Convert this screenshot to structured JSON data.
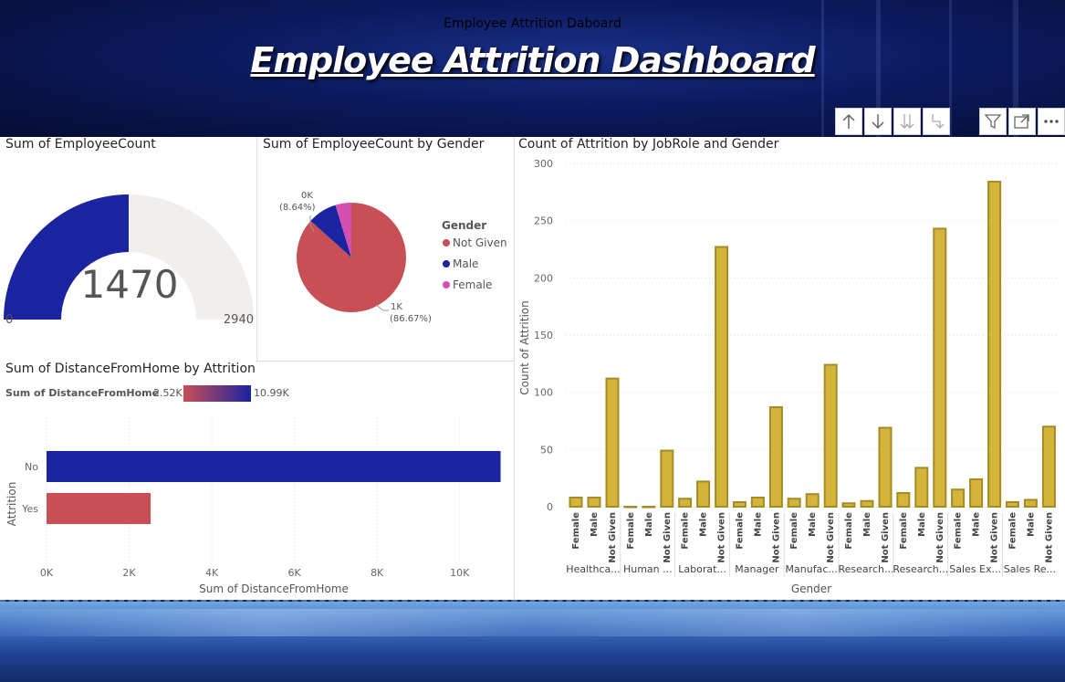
{
  "header": {
    "small_title": "Employee Attrition Daboard",
    "main_title": "Employee Attrition Dashboard"
  },
  "toolbar": {
    "icons": [
      "drill-up-icon",
      "drill-down-icon",
      "expand-all-icon",
      "drill-next-level-icon",
      "filter-icon",
      "focus-mode-icon",
      "more-options-icon"
    ]
  },
  "gauge": {
    "title": "Sum of EmployeeCount",
    "value": "1470",
    "min": "0",
    "max": "2940",
    "fraction": 0.5,
    "colors": {
      "fill": "#1a23a0",
      "track": "#f0efed"
    }
  },
  "pie": {
    "title": "Sum of EmployeeCount by Gender",
    "legend_title": "Gender",
    "legend": [
      {
        "label": "Not Given",
        "color": "#c84f55"
      },
      {
        "label": "Male",
        "color": "#1a23a0"
      },
      {
        "label": "Female",
        "color": "#d44fb0"
      }
    ],
    "label_small_1": "0K",
    "label_small_2": "(8.64%)",
    "label_large_1": "1K",
    "label_large_2": "(86.67%)"
  },
  "distance": {
    "title": "Sum of DistanceFromHome by Attrition",
    "legend_title": "Sum of DistanceFromHome",
    "legend_min": "2.52K",
    "legend_max": "10.99K",
    "ylabel": "Attrition",
    "xlabel": "Sum of DistanceFromHome",
    "ticks": [
      "0K",
      "2K",
      "4K",
      "6K",
      "8K",
      "10K"
    ],
    "categories": [
      "No",
      "Yes"
    ],
    "colors": {
      "No": "#1a23a0",
      "Yes": "#c84f55"
    }
  },
  "jobrole": {
    "title": "Count of Attrition by JobRole and Gender",
    "ylabel": "Count of Attrition",
    "xlabel": "Gender",
    "yticks": [
      "300",
      "250",
      "200",
      "150",
      "100",
      "50",
      "0"
    ],
    "bar_color": "#d4b43a",
    "bar_stroke": "#a48b25"
  },
  "chart_data": [
    {
      "type": "pie",
      "title": "Sum of EmployeeCount by Gender",
      "categories": [
        "Not Given",
        "Male",
        "Female"
      ],
      "values": [
        86.67,
        8.64,
        4.69
      ],
      "unit": "percent"
    },
    {
      "type": "bar",
      "orientation": "horizontal",
      "title": "Sum of DistanceFromHome by Attrition",
      "categories": [
        "No",
        "Yes"
      ],
      "values": [
        10990,
        2520
      ],
      "xlabel": "Sum of DistanceFromHome",
      "ylabel": "Attrition",
      "xlim": [
        0,
        11000
      ]
    },
    {
      "type": "bar",
      "title": "Count of Attrition by JobRole and Gender",
      "xlabel": "Gender",
      "ylabel": "Count of Attrition",
      "ylim": [
        0,
        300
      ],
      "groups": [
        {
          "role": "Healthca...",
          "genders": [
            "Female",
            "Male",
            "Not Given"
          ],
          "values": [
            8,
            8,
            112
          ]
        },
        {
          "role": "Human ...",
          "genders": [
            "Female",
            "Male",
            "Not Given"
          ],
          "values": [
            0,
            0,
            49
          ]
        },
        {
          "role": "Laborat...",
          "genders": [
            "Female",
            "Male",
            "Not Given"
          ],
          "values": [
            7,
            22,
            227
          ]
        },
        {
          "role": "Manager",
          "genders": [
            "Female",
            "Male",
            "Not Given"
          ],
          "values": [
            4,
            8,
            87
          ]
        },
        {
          "role": "Manufac...",
          "genders": [
            "Female",
            "Male",
            "Not Given"
          ],
          "values": [
            7,
            11,
            124
          ]
        },
        {
          "role": "Research...",
          "genders": [
            "Female",
            "Male",
            "Not Given"
          ],
          "values": [
            3,
            5,
            69
          ]
        },
        {
          "role": "Research...",
          "genders": [
            "Female",
            "Male",
            "Not Given"
          ],
          "values": [
            12,
            34,
            243
          ]
        },
        {
          "role": "Sales Ex...",
          "genders": [
            "Female",
            "Male",
            "Not Given"
          ],
          "values": [
            15,
            24,
            284
          ]
        },
        {
          "role": "Sales Re...",
          "genders": [
            "Female",
            "Male",
            "Not Given"
          ],
          "values": [
            4,
            6,
            70
          ]
        }
      ]
    }
  ]
}
